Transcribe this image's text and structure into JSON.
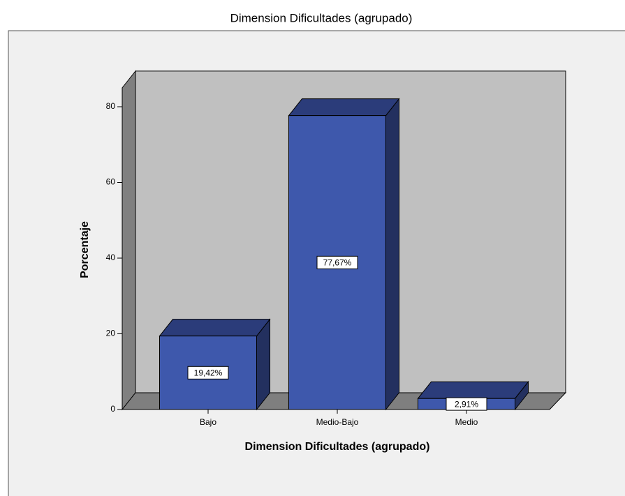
{
  "chart_data": {
    "type": "bar3d",
    "title": "Dimension Dificultades (agrupado)",
    "x_label": "Dimension Dificultades (agrupado)",
    "y_label": "Porcentaje",
    "categories": [
      "Bajo",
      "Medio-Bajo",
      "Medio"
    ],
    "values": [
      19.42,
      77.67,
      2.91
    ],
    "value_labels": [
      "19,42%",
      "77,67%",
      "2,91%"
    ],
    "color": "#3e58ac",
    "ylim": [
      0,
      85
    ],
    "yticks": [
      0,
      20,
      40,
      60,
      80
    ]
  }
}
